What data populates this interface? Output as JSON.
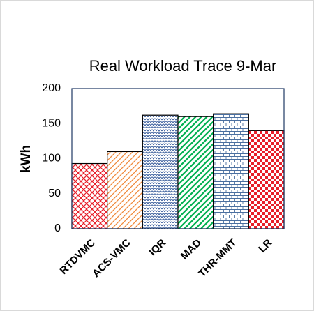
{
  "chart_data": {
    "type": "bar",
    "title": "Real Workload Trace 9-Mar",
    "y_label": "kWh",
    "categories": [
      "RTDVMC",
      "ACS-VMC",
      "IQR",
      "MAD",
      "THR-MMT",
      "LR"
    ],
    "values": [
      93,
      110,
      162,
      160,
      164,
      140
    ],
    "colors": [
      "#e8202a",
      "#f08a3c",
      "#2f5597",
      "#00b050",
      "#4a6fa0",
      "#e8202a"
    ],
    "patterns": [
      "cross-hatch",
      "hatch",
      "scale",
      "diagonal",
      "brick",
      "checker"
    ],
    "ylim": [
      0,
      200
    ],
    "yticks": [
      0,
      50,
      100,
      150,
      200
    ],
    "grid": false
  }
}
